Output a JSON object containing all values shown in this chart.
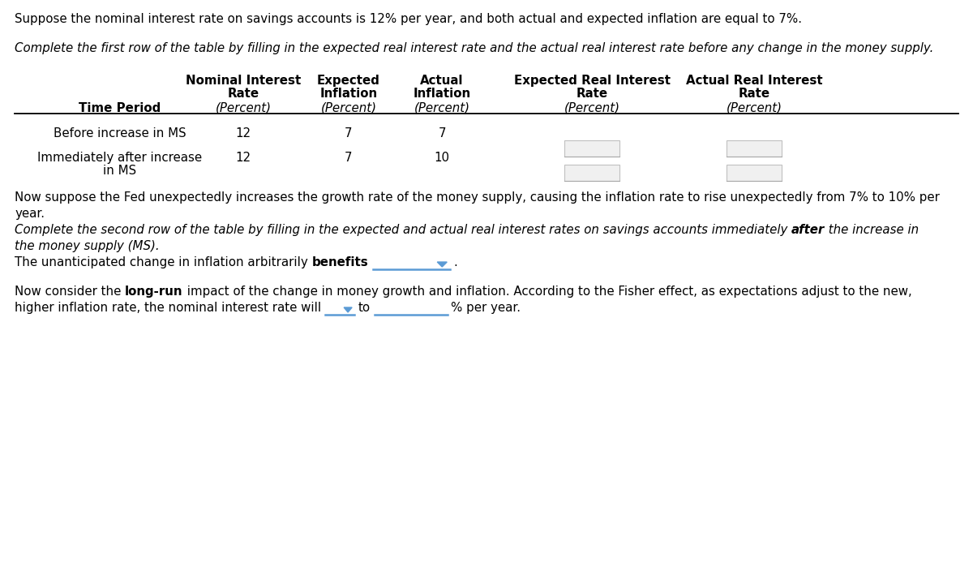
{
  "bg_color": "#ffffff",
  "text_color": "#000000",
  "para1": "Suppose the nominal interest rate on savings accounts is 12% per year, and both actual and expected inflation are equal to 7%.",
  "para2_italic": "Complete the first row of the table by filling in the expected real interest rate and the actual real interest rate before any change in the money supply.",
  "col_headers_line1": [
    "Nominal Interest",
    "Expected",
    "Actual",
    "Expected Real Interest",
    "Actual Real Interest"
  ],
  "col_headers_line2": [
    "Rate",
    "Inflation",
    "Inflation",
    "Rate",
    "Rate"
  ],
  "col_headers_line3": [
    "(Percent)",
    "(Percent)",
    "(Percent)",
    "(Percent)",
    "(Percent)"
  ],
  "row_label_header": "Time Period",
  "rows": [
    {
      "label": "Before increase in MS",
      "label2": "",
      "nominal": "12",
      "expected_inf": "7",
      "actual_inf": "7"
    },
    {
      "label": "Immediately after increase",
      "label2": "in MS",
      "nominal": "12",
      "expected_inf": "7",
      "actual_inf": "10"
    }
  ],
  "para3_line1": "Now suppose the Fed unexpectedly increases the growth rate of the money supply, causing the inflation rate to rise unexpectedly from 7% to 10% per",
  "para3_line2": "year.",
  "para4_before": "Complete the second row of the table by filling in the expected and actual real interest rates on savings accounts immediately ",
  "para4_bold": "after",
  "para4_after": " the increase in",
  "para4_line2": "the money supply (MS).",
  "para5_before": "The unanticipated change in inflation arbitrarily ",
  "para5_bold": "benefits",
  "para6_before": "Now consider the ",
  "para6_bold": "long-run",
  "para6_after": " impact of the change in money growth and inflation. According to the Fisher effect, as expectations adjust to the new,",
  "para6_line2": "higher inflation rate, the nominal interest rate will",
  "para6_to": "to",
  "para6_end": "% per year.",
  "dropdown_color": "#5b9bd5",
  "table_line_color": "#000000",
  "input_box_bg": "#f0f0f0",
  "input_box_border": "#c0c0c0"
}
